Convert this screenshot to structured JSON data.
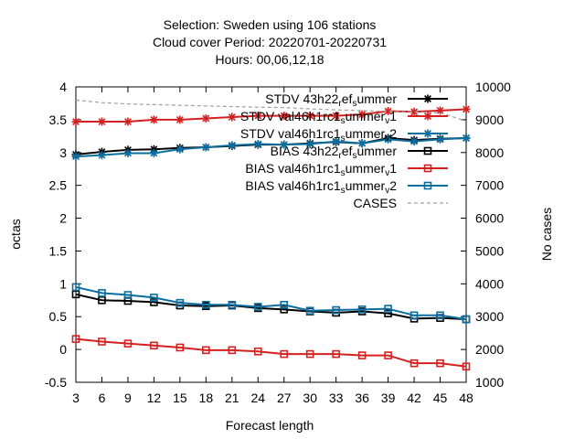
{
  "title_lines": [
    "Selection: Sweden using   106 stations",
    "Cloud cover   Period: 20220701-20220731",
    "Hours:  00,06,12,18"
  ],
  "chart_data": {
    "type": "line",
    "xlabel": "Forecast length",
    "ylabel": "octas",
    "y2label": "No cases",
    "xlim": [
      3,
      48
    ],
    "ylim": [
      -0.5,
      4
    ],
    "y2lim": [
      1000,
      10000
    ],
    "x": [
      3,
      6,
      9,
      12,
      15,
      18,
      21,
      24,
      27,
      30,
      33,
      36,
      39,
      42,
      45,
      48
    ],
    "x_ticks": [
      "3",
      "6",
      "9",
      "12",
      "15",
      "18",
      "21",
      "24",
      "27",
      "30",
      "33",
      "36",
      "39",
      "42",
      "45",
      "48"
    ],
    "y_ticks": [
      "4",
      "3.5",
      "3",
      "2.5",
      "2",
      "1.5",
      "1",
      "0.5",
      "0",
      "-0.5"
    ],
    "y2_ticks": [
      "10000",
      "9000",
      "8000",
      "7000",
      "6000",
      "5000",
      "4000",
      "3000",
      "2000",
      "1000"
    ],
    "grid": false,
    "legend_position": "top-right",
    "series": [
      {
        "name": "STDV 43h22_ref_summer",
        "axis": "y",
        "color": "#000000",
        "marker": "star",
        "values": [
          2.97,
          3.01,
          3.04,
          3.05,
          3.07,
          3.08,
          3.1,
          3.12,
          3.12,
          3.14,
          3.16,
          3.14,
          3.22,
          3.19,
          3.21,
          3.22
        ]
      },
      {
        "name": "STDV val46h1rc1_summer_v1",
        "axis": "y",
        "color": "#d62020",
        "marker": "star",
        "values": [
          3.47,
          3.47,
          3.47,
          3.5,
          3.5,
          3.52,
          3.54,
          3.56,
          3.56,
          3.56,
          3.56,
          3.58,
          3.63,
          3.62,
          3.64,
          3.66
        ]
      },
      {
        "name": "STDV val46h1rc1_summer_v2",
        "axis": "y",
        "color": "#0a6ea0",
        "marker": "star",
        "values": [
          2.94,
          2.96,
          2.99,
          2.99,
          3.05,
          3.08,
          3.11,
          3.13,
          3.12,
          3.13,
          3.17,
          3.14,
          3.2,
          3.17,
          3.2,
          3.22
        ]
      },
      {
        "name": "BIAS 43h22_ref_summer",
        "axis": "y",
        "color": "#000000",
        "marker": "square",
        "values": [
          0.84,
          0.75,
          0.74,
          0.72,
          0.67,
          0.66,
          0.67,
          0.63,
          0.61,
          0.58,
          0.56,
          0.58,
          0.55,
          0.47,
          0.48,
          0.46
        ]
      },
      {
        "name": "BIAS val46h1rc1_summer_v1",
        "axis": "y",
        "color": "#d62020",
        "marker": "square",
        "values": [
          0.16,
          0.12,
          0.09,
          0.06,
          0.03,
          -0.01,
          -0.01,
          -0.03,
          -0.07,
          -0.07,
          -0.07,
          -0.09,
          -0.09,
          -0.21,
          -0.21,
          -0.26
        ]
      },
      {
        "name": "BIAS val46h1rc1_summer_v2",
        "axis": "y",
        "color": "#0a6ea0",
        "marker": "square",
        "values": [
          0.95,
          0.86,
          0.83,
          0.79,
          0.71,
          0.68,
          0.68,
          0.65,
          0.68,
          0.59,
          0.6,
          0.61,
          0.62,
          0.52,
          0.52,
          0.46
        ]
      },
      {
        "name": "CASES",
        "axis": "y2",
        "color": "#a0a0a0",
        "marker": "none",
        "dash": true,
        "values": [
          9600,
          9520,
          9480,
          9460,
          9440,
          9420,
          9400,
          9380,
          9370,
          9330,
          9300,
          9280,
          9250,
          9240,
          9210,
          8960
        ]
      }
    ],
    "legend_labels": [
      [
        "STDV 43h22",
        "r",
        "ef",
        "s",
        "ummer",
        ""
      ],
      [
        "STDV val46h1rc1",
        "s",
        "ummer",
        "v",
        "1",
        ""
      ],
      [
        "STDV val46h1rc1",
        "s",
        "ummer",
        "v",
        "2",
        ""
      ],
      [
        "BIAS 43h22",
        "r",
        "ef",
        "s",
        "ummer",
        ""
      ],
      [
        "BIAS val46h1rc1",
        "s",
        "ummer",
        "v",
        "1",
        ""
      ],
      [
        "BIAS val46h1rc1",
        "s",
        "ummer",
        "v",
        "2",
        ""
      ],
      [
        "CASES",
        "",
        "",
        "",
        "",
        ""
      ]
    ]
  }
}
